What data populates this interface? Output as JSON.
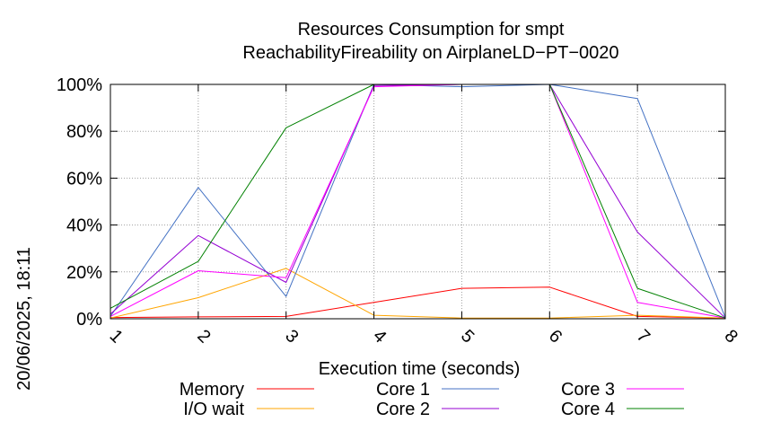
{
  "chart_data": {
    "type": "line",
    "title": "Resources Consumption for smpt",
    "subtitle": "ReachabilityFireability on AirplaneLD−PT−0020",
    "xlabel": "Execution time (seconds)",
    "ylabel": "",
    "timestamp": "20/06/2025, 18:11",
    "x": [
      1,
      2,
      3,
      4,
      5,
      6,
      7,
      8
    ],
    "xlim": [
      1,
      8
    ],
    "ylim": [
      0,
      100
    ],
    "x_ticks": [
      "1",
      "2",
      "3",
      "4",
      "5",
      "6",
      "7",
      "8"
    ],
    "y_ticks": [
      {
        "value": 0,
        "label": "0%"
      },
      {
        "value": 20,
        "label": "20%"
      },
      {
        "value": 40,
        "label": "40%"
      },
      {
        "value": 60,
        "label": "60%"
      },
      {
        "value": 80,
        "label": "80%"
      },
      {
        "value": 100,
        "label": "100%"
      }
    ],
    "grid": true,
    "legend_position": "bottom",
    "series": [
      {
        "name": "Memory",
        "color": "#ff0000",
        "values": [
          0.5,
          0.8,
          1.0,
          7.0,
          13.0,
          13.5,
          1.0,
          0.3
        ]
      },
      {
        "name": "I/O wait",
        "color": "#ffa500",
        "values": [
          0.3,
          9.0,
          21.5,
          1.5,
          0.3,
          0.3,
          1.5,
          0.3
        ]
      },
      {
        "name": "Core 1",
        "color": "#4472c4",
        "values": [
          1.0,
          56.0,
          9.5,
          100.0,
          99.0,
          100.0,
          94.0,
          0.5
        ]
      },
      {
        "name": "Core 2",
        "color": "#9400d3",
        "values": [
          2.0,
          35.5,
          15.5,
          99.5,
          100.0,
          100.0,
          37.0,
          0.3
        ]
      },
      {
        "name": "Core 3",
        "color": "#ff00ff",
        "values": [
          1.0,
          20.5,
          17.5,
          99.0,
          100.0,
          100.0,
          7.0,
          0.3
        ]
      },
      {
        "name": "Core 4",
        "color": "#008000",
        "values": [
          4.5,
          24.5,
          81.5,
          100.0,
          100.0,
          100.0,
          13.0,
          0.3
        ]
      }
    ]
  }
}
